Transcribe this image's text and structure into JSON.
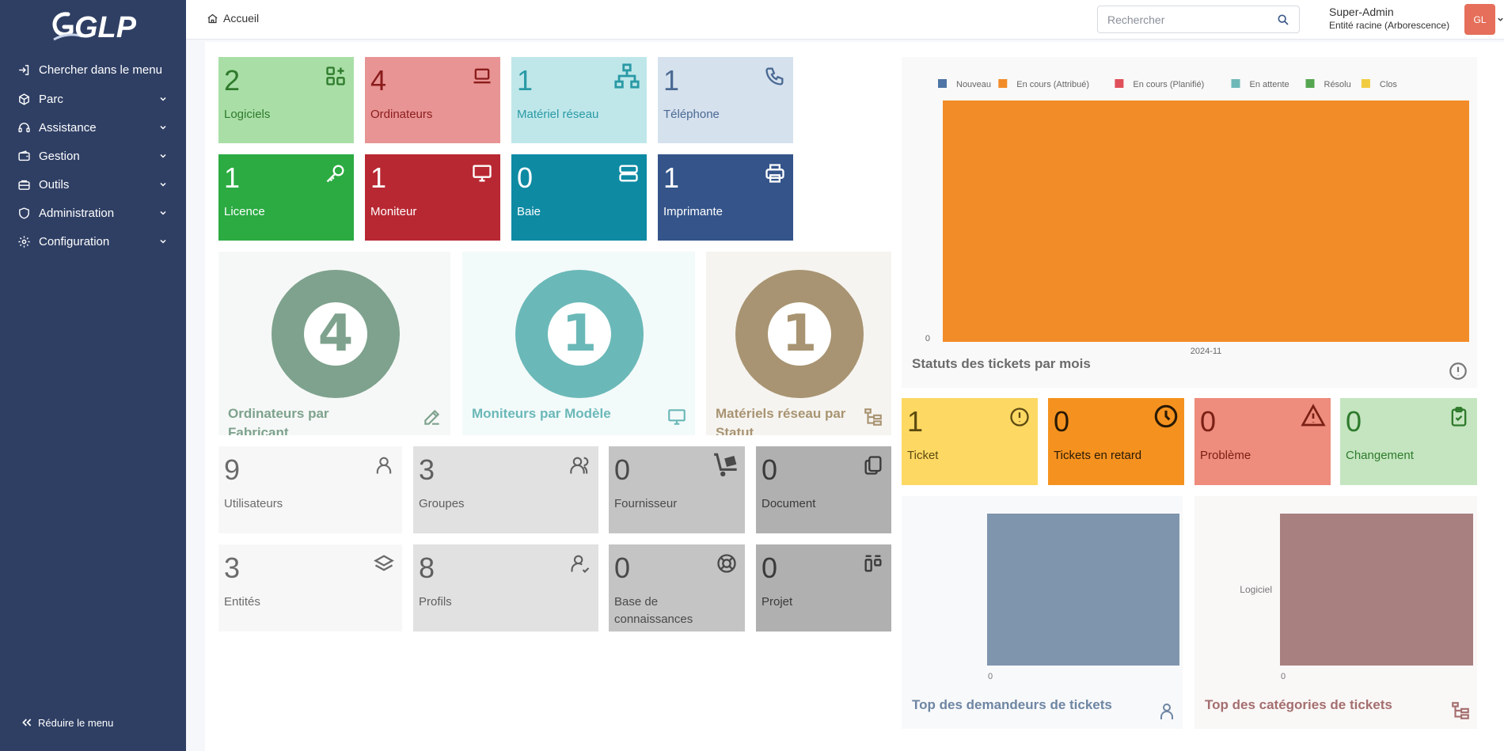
{
  "app": {
    "logo_text": "GLPI"
  },
  "sidebar": {
    "items": [
      {
        "label": "Chercher dans le menu",
        "icon": "sign-in-icon"
      },
      {
        "label": "Parc",
        "icon": "box-icon"
      },
      {
        "label": "Assistance",
        "icon": "headset-icon"
      },
      {
        "label": "Gestion",
        "icon": "wallet-icon"
      },
      {
        "label": "Outils",
        "icon": "briefcase-icon"
      },
      {
        "label": "Administration",
        "icon": "shield-icon"
      },
      {
        "label": "Configuration",
        "icon": "gear-icon"
      }
    ],
    "reduce_label": "Réduire le menu"
  },
  "header": {
    "breadcrumb": "Accueil",
    "search_placeholder": "Rechercher",
    "user_name": "Super-Admin",
    "user_entity": "Entité racine (Arborescence)",
    "avatar_initials": "GL"
  },
  "tiles": [
    {
      "value": "2",
      "label": "Logiciels",
      "icon": "apps-icon",
      "bg": "#a9dfa7",
      "fg": "#2f7a2c"
    },
    {
      "value": "4",
      "label": "Ordinateurs",
      "icon": "laptop-icon",
      "bg": "#e89494",
      "fg": "#8b1c1c"
    },
    {
      "value": "1",
      "label": "Matériel réseau",
      "icon": "network-icon",
      "bg": "#bfe7ea",
      "fg": "#2a9aa5"
    },
    {
      "value": "1",
      "label": "Téléphone",
      "icon": "phone-icon",
      "bg": "#d6e1ee",
      "fg": "#4a6a93"
    },
    {
      "value": "1",
      "label": "Licence",
      "icon": "key-icon",
      "bg": "#2bab42",
      "fg": "#ffffff"
    },
    {
      "value": "1",
      "label": "Moniteur",
      "icon": "monitor-icon",
      "bg": "#b82832",
      "fg": "#ffffff"
    },
    {
      "value": "0",
      "label": "Baie",
      "icon": "server-icon",
      "bg": "#0e8aa3",
      "fg": "#ffffff"
    },
    {
      "value": "1",
      "label": "Imprimante",
      "icon": "printer-icon",
      "bg": "#34548a",
      "fg": "#ffffff"
    }
  ],
  "big_cards": [
    {
      "value": "4",
      "title": "Ordinateurs par Fabricant",
      "icon": "edit-icon",
      "bg": "#f6f8f7",
      "color": "#7ea28d"
    },
    {
      "value": "1",
      "title": "Moniteurs par Modèle",
      "icon": "monitor-icon",
      "bg": "#f3fafa",
      "color": "#6bb8b8"
    },
    {
      "value": "1",
      "title": "Matériels réseau par Statut",
      "icon": "hierarchy-icon",
      "bg": "#f6f4f0",
      "color": "#a89472"
    }
  ],
  "admin_tiles": [
    {
      "value": "9",
      "label": "Utilisateurs",
      "icon": "user-icon",
      "bg": "#f7f7f7",
      "fg": "#6b6b6b"
    },
    {
      "value": "3",
      "label": "Groupes",
      "icon": "users-icon",
      "bg": "#e1e1e1",
      "fg": "#5f5f5f"
    },
    {
      "value": "0",
      "label": "Fournisseur",
      "icon": "dolly-icon",
      "bg": "#c4c4c4",
      "fg": "#4a4a4a"
    },
    {
      "value": "0",
      "label": "Document",
      "icon": "files-icon",
      "bg": "#b0b0b0",
      "fg": "#3a3a3a"
    },
    {
      "value": "3",
      "label": "Entités",
      "icon": "stack-icon",
      "bg": "#f7f7f7",
      "fg": "#6b6b6b"
    },
    {
      "value": "8",
      "label": "Profils",
      "icon": "user-check-icon",
      "bg": "#e1e1e1",
      "fg": "#5f5f5f"
    },
    {
      "value": "0",
      "label": "Base de connaissances",
      "icon": "lifebuoy-icon",
      "bg": "#c4c4c4",
      "fg": "#4a4a4a"
    },
    {
      "value": "0",
      "label": "Projet",
      "icon": "layout-kanban-icon",
      "bg": "#b0b0b0",
      "fg": "#3a3a3a"
    }
  ],
  "ticket_tiles": [
    {
      "value": "1",
      "label": "Ticket",
      "icon": "alert-circle-icon",
      "bg": "#fdd863",
      "fg": "#5c4a10"
    },
    {
      "value": "0",
      "label": "Tickets en retard",
      "icon": "clock-icon",
      "bg": "#f5921f",
      "fg": "#2a1a05"
    },
    {
      "value": "0",
      "label": "Problème",
      "icon": "alert-triangle-icon",
      "bg": "#ee8c7d",
      "fg": "#7a1f14"
    },
    {
      "value": "0",
      "label": "Changement",
      "icon": "clipboard-check-icon",
      "bg": "#c4e5c0",
      "fg": "#2f7a2c"
    }
  ],
  "status_chart": {
    "title": "Statuts des tickets par mois",
    "icon": "alert-circle-icon",
    "legend": [
      {
        "name": "Nouveau",
        "color": "#4f74a6"
      },
      {
        "name": "En cours (Attribué)",
        "color": "#f28c28"
      },
      {
        "name": "En cours (Planifié)",
        "color": "#e0505a"
      },
      {
        "name": "En attente",
        "color": "#6fb8b8"
      },
      {
        "name": "Résolu",
        "color": "#55a650"
      },
      {
        "name": "Clos",
        "color": "#f2cc40"
      }
    ]
  },
  "requesters_chart": {
    "title": "Top des demandeurs de tickets",
    "icon": "user-icon"
  },
  "categories_chart": {
    "title": "Top des catégories de tickets",
    "icon": "hierarchy-icon"
  },
  "chart_data": [
    {
      "type": "bar",
      "categories": [
        "2024-11"
      ],
      "series": [
        {
          "name": "En cours (Attribué)",
          "values": [
            1
          ]
        }
      ],
      "title": "Statuts des tickets par mois",
      "ytick_labels": [
        "0"
      ],
      "legend_position": "top"
    },
    {
      "type": "bar",
      "orientation": "horizontal",
      "categories": [
        ""
      ],
      "values": [
        1
      ],
      "title": "Top des demandeurs de tickets",
      "xtick_labels": [
        "0"
      ]
    },
    {
      "type": "bar",
      "orientation": "horizontal",
      "categories": [
        "Logiciel"
      ],
      "values": [
        1
      ],
      "title": "Top des catégories de tickets",
      "xtick_labels": [
        "0"
      ]
    }
  ]
}
